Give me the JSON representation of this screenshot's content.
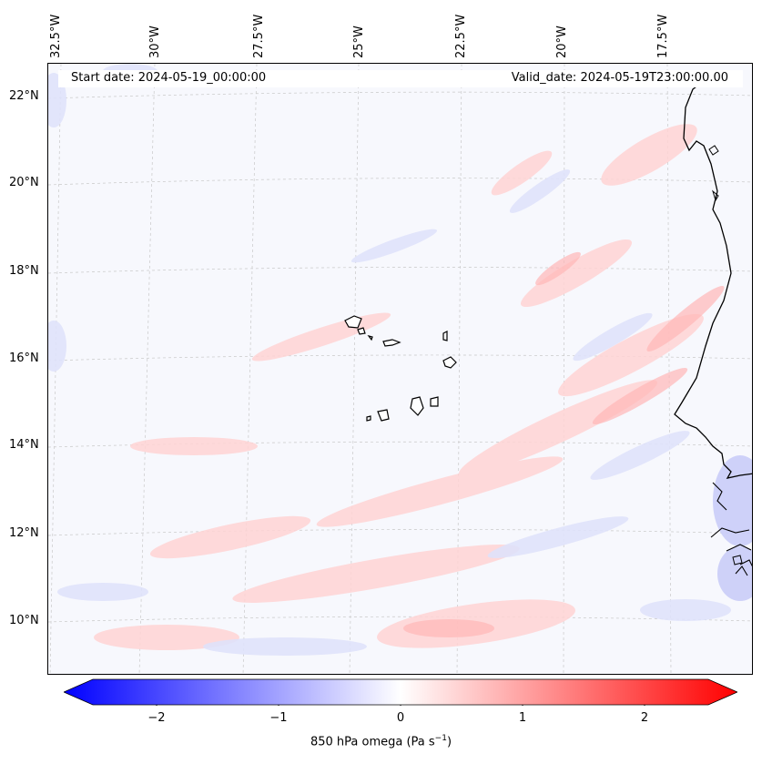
{
  "map": {
    "start_label": "Start date: 2024-05-19_00:00:00",
    "valid_label": "Valid_date: 2024-05-19T23:00:00.00",
    "lon_labels": [
      "32.5°W",
      "30°W",
      "27.5°W",
      "25°W",
      "22.5°W",
      "20°W",
      "17.5°W"
    ],
    "lat_labels": [
      "22°N",
      "20°N",
      "18°N",
      "16°N",
      "14°N",
      "12°N",
      "10°N"
    ],
    "region": "Cape Verde Islands and West African coast",
    "colors": {
      "negative": "#0000ff",
      "zero": "#ffffff",
      "positive": "#ff0000",
      "coast": "#000000"
    }
  },
  "colorbar": {
    "ticks": [
      "−2",
      "−1",
      "0",
      "1",
      "2"
    ],
    "min": -2.6,
    "max": 2.6,
    "label": "850 hPa omega (Pa s"
  }
}
